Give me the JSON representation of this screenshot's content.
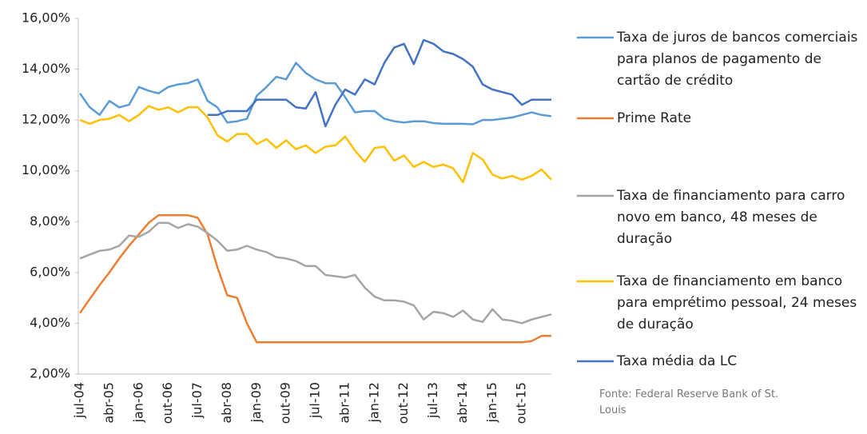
{
  "chart_data": {
    "type": "line",
    "categories": [
      "jul-04",
      null,
      null,
      "abr-05",
      null,
      null,
      "jan-06",
      null,
      null,
      "out-06",
      null,
      null,
      "jul-07",
      null,
      null,
      "abr-08",
      null,
      null,
      "jan-09",
      null,
      null,
      "out-09",
      null,
      null,
      "jul-10",
      null,
      null,
      "abr-11",
      null,
      null,
      "jan-12",
      null,
      null,
      "out-12",
      null,
      null,
      "jul-13",
      null,
      null,
      "abr-14",
      null,
      null,
      "jan-15",
      null,
      null,
      "out-15",
      null,
      null,
      null
    ],
    "series": [
      {
        "name": "Taxa de juros de bancos comerciais para planos de pagamento de cartão de crédito",
        "color": "#5b9bd5",
        "values": [
          13.05,
          12.5,
          12.2,
          12.75,
          12.5,
          12.6,
          13.3,
          13.15,
          13.05,
          13.3,
          13.4,
          13.45,
          13.6,
          12.75,
          12.5,
          11.9,
          11.95,
          12.05,
          12.95,
          13.3,
          13.7,
          13.6,
          14.25,
          13.85,
          13.6,
          13.45,
          13.45,
          12.9,
          12.3,
          12.35,
          12.35,
          12.05,
          11.95,
          11.9,
          11.95,
          11.95,
          11.88,
          11.85,
          11.85,
          11.85,
          11.83,
          12.0,
          12.0,
          12.05,
          12.1,
          12.2,
          12.3,
          12.2,
          12.15
        ]
      },
      {
        "name": "Prime Rate",
        "color": "#ed7d31",
        "values": [
          4.4,
          4.95,
          5.5,
          6.0,
          6.55,
          7.05,
          7.5,
          7.95,
          8.25,
          8.25,
          8.25,
          8.25,
          8.15,
          7.5,
          6.2,
          5.1,
          5.0,
          4.0,
          3.25,
          3.25,
          3.25,
          3.25,
          3.25,
          3.25,
          3.25,
          3.25,
          3.25,
          3.25,
          3.25,
          3.25,
          3.25,
          3.25,
          3.25,
          3.25,
          3.25,
          3.25,
          3.25,
          3.25,
          3.25,
          3.25,
          3.25,
          3.25,
          3.25,
          3.25,
          3.25,
          3.25,
          3.3,
          3.5,
          3.5
        ]
      },
      {
        "name": "Taxa de financiamento para carro novo em banco, 48 meses de duração",
        "color": "#a5a5a5",
        "values": [
          6.55,
          6.7,
          6.85,
          6.9,
          7.05,
          7.45,
          7.4,
          7.6,
          7.95,
          7.95,
          7.75,
          7.9,
          7.8,
          7.55,
          7.25,
          6.85,
          6.9,
          7.05,
          6.9,
          6.8,
          6.6,
          6.55,
          6.45,
          6.25,
          6.25,
          5.9,
          5.85,
          5.8,
          5.9,
          5.4,
          5.05,
          4.9,
          4.9,
          4.85,
          4.7,
          4.15,
          4.45,
          4.4,
          4.25,
          4.5,
          4.15,
          4.05,
          4.55,
          4.15,
          4.1,
          4.0,
          4.15,
          4.25,
          4.35
        ]
      },
      {
        "name": "Taxa de financiamento em banco para emprétimo pessoal, 24 meses de duração",
        "color": "#ffc000",
        "values": [
          12.0,
          11.85,
          12.0,
          12.05,
          12.2,
          11.95,
          12.2,
          12.55,
          12.4,
          12.5,
          12.3,
          12.5,
          12.5,
          12.1,
          11.4,
          11.15,
          11.45,
          11.45,
          11.05,
          11.25,
          10.9,
          11.2,
          10.85,
          11.0,
          10.7,
          10.95,
          11.0,
          11.35,
          10.8,
          10.35,
          10.9,
          10.95,
          10.4,
          10.6,
          10.15,
          10.35,
          10.15,
          10.25,
          10.1,
          9.55,
          10.7,
          10.45,
          9.85,
          9.7,
          9.8,
          9.65,
          9.8,
          10.05,
          9.65
        ]
      },
      {
        "name": "Taxa média da LC",
        "color": "#4472c4",
        "values": [
          null,
          null,
          null,
          null,
          null,
          null,
          null,
          null,
          null,
          null,
          null,
          null,
          null,
          12.2,
          12.2,
          12.35,
          12.35,
          12.35,
          12.8,
          12.8,
          12.8,
          12.8,
          12.5,
          12.45,
          13.1,
          11.75,
          12.6,
          13.2,
          13.0,
          13.6,
          13.4,
          14.25,
          14.85,
          15.0,
          14.2,
          15.15,
          15.0,
          14.7,
          14.6,
          14.4,
          14.1,
          13.4,
          13.2,
          13.1,
          13.0,
          12.6,
          12.8,
          12.8,
          12.8
        ]
      }
    ],
    "ylim": [
      2,
      16
    ],
    "yticks": [
      {
        "value": 2,
        "label": "2,00%"
      },
      {
        "value": 4,
        "label": "4,00%"
      },
      {
        "value": 6,
        "label": "6,00%"
      },
      {
        "value": 8,
        "label": "8,00%"
      },
      {
        "value": 10,
        "label": "10,00%"
      },
      {
        "value": 12,
        "label": "12,00%"
      },
      {
        "value": 14,
        "label": "14,00%"
      },
      {
        "value": 16,
        "label": "16,00%"
      }
    ],
    "grid": false,
    "legend": "right",
    "source": "Fonte: Federal Reserve Bank of St. Louis"
  }
}
